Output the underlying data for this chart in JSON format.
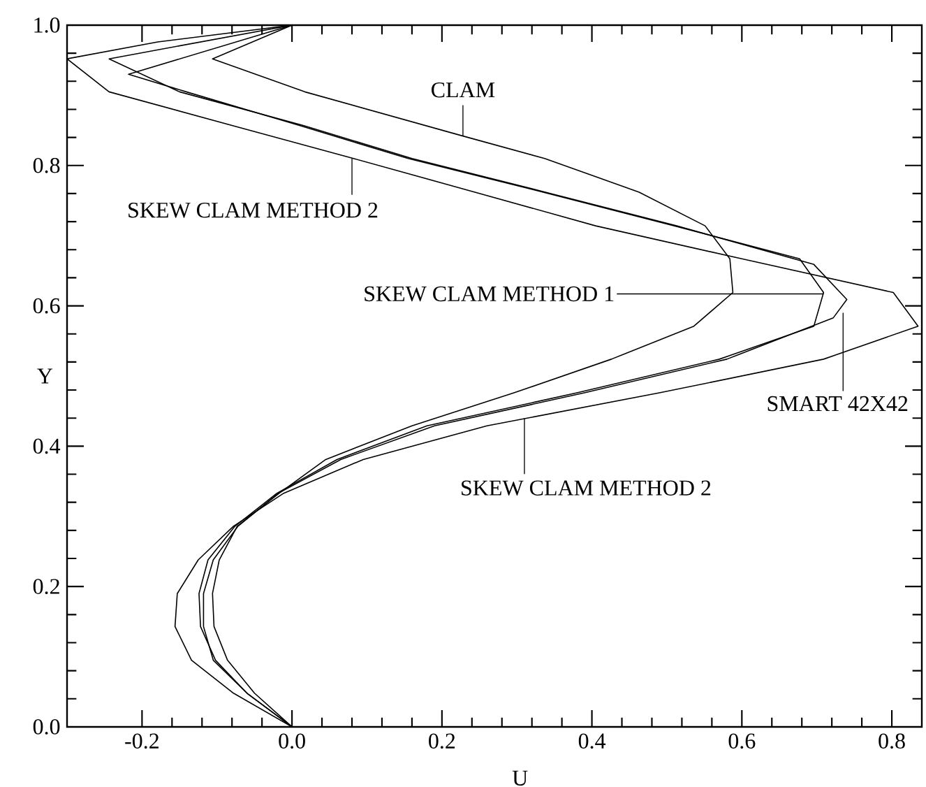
{
  "chart_data": {
    "type": "line",
    "xlabel": "U",
    "ylabel": "Y",
    "xlim": [
      -0.3,
      0.84
    ],
    "ylim": [
      0,
      1
    ],
    "xticks": [
      {
        "value": -0.2,
        "label": "-0.2"
      },
      {
        "value": 0.0,
        "label": "0.0"
      },
      {
        "value": 0.2,
        "label": "0.2"
      },
      {
        "value": 0.4,
        "label": "0.4"
      },
      {
        "value": 0.6,
        "label": "0.6"
      },
      {
        "value": 0.8,
        "label": "0.8"
      }
    ],
    "yticks": [
      {
        "value": 0.0,
        "label": "0.0"
      },
      {
        "value": 0.2,
        "label": "0.2"
      },
      {
        "value": 0.4,
        "label": "0.4"
      },
      {
        "value": 0.6,
        "label": "0.6"
      },
      {
        "value": 0.8,
        "label": "0.8"
      },
      {
        "value": 1.0,
        "label": "1.0"
      }
    ],
    "grid": false,
    "marker": "none",
    "line_style": "solid",
    "series": [
      {
        "color": "#000000",
        "x": [
          0,
          -0.05,
          -0.086,
          -0.104,
          -0.106,
          -0.097,
          -0.073,
          -0.017,
          0.045,
          0.16,
          0.296,
          0.426,
          0.536,
          0.588,
          0.584,
          0.551,
          0.463,
          0.337,
          0.228,
          0.017,
          -0.106,
          0
        ],
        "values": [
          0,
          0.048,
          0.095,
          0.143,
          0.19,
          0.238,
          0.286,
          0.333,
          0.381,
          0.429,
          0.476,
          0.524,
          0.571,
          0.619,
          0.667,
          0.714,
          0.762,
          0.81,
          0.842,
          0.905,
          0.952,
          1
        ]
      },
      {
        "color": "#000000",
        "x": [
          0,
          -0.06,
          -0.102,
          -0.122,
          -0.124,
          -0.112,
          -0.076,
          -0.02,
          0.06,
          0.18,
          0.38,
          0.57,
          0.696,
          0.709,
          0.677,
          0.51,
          0.335,
          0.155,
          0.01,
          -0.141,
          -0.218,
          0
        ],
        "values": [
          0,
          0.048,
          0.095,
          0.143,
          0.19,
          0.238,
          0.286,
          0.333,
          0.381,
          0.429,
          0.476,
          0.524,
          0.571,
          0.619,
          0.667,
          0.714,
          0.762,
          0.81,
          0.857,
          0.905,
          0.93,
          1
        ]
      },
      {
        "color": "#000000",
        "x": [
          0,
          -0.06,
          -0.105,
          -0.118,
          -0.118,
          -0.105,
          -0.072,
          -0.018,
          0.065,
          0.19,
          0.39,
          0.58,
          0.722,
          0.74,
          0.696,
          0.513,
          0.338,
          0.16,
          0.015,
          -0.15,
          -0.244,
          0
        ],
        "values": [
          0,
          0.048,
          0.095,
          0.143,
          0.19,
          0.238,
          0.286,
          0.333,
          0.381,
          0.429,
          0.476,
          0.524,
          0.583,
          0.609,
          0.659,
          0.714,
          0.762,
          0.81,
          0.857,
          0.905,
          0.952,
          1
        ]
      },
      {
        "color": "#000000",
        "x": [
          0,
          -0.078,
          -0.134,
          -0.156,
          -0.153,
          -0.125,
          -0.078,
          -0.011,
          0.095,
          0.26,
          0.49,
          0.709,
          0.835,
          0.802,
          0.6,
          0.405,
          0.244,
          0.082,
          -0.08,
          -0.244,
          -0.3,
          -0.179,
          0
        ],
        "values": [
          0,
          0.048,
          0.095,
          0.143,
          0.19,
          0.238,
          0.286,
          0.333,
          0.381,
          0.429,
          0.476,
          0.524,
          0.571,
          0.619,
          0.667,
          0.714,
          0.762,
          0.81,
          0.857,
          0.905,
          0.952,
          0.976,
          1
        ]
      }
    ],
    "annotations": [
      {
        "text": "CLAM",
        "x": 0.228,
        "y": 0.842
      },
      {
        "text": "SKEW CLAM METHOD 2",
        "x": 0.08,
        "y": 0.81
      },
      {
        "text": "SKEW CLAM METHOD 1",
        "x": 0.709,
        "y": 0.617
      },
      {
        "text": "SMART 42X42",
        "x": 0.735,
        "y": 0.59
      },
      {
        "text": "SKEW CLAM METHOD 2",
        "x": 0.31,
        "y": 0.44
      }
    ]
  }
}
